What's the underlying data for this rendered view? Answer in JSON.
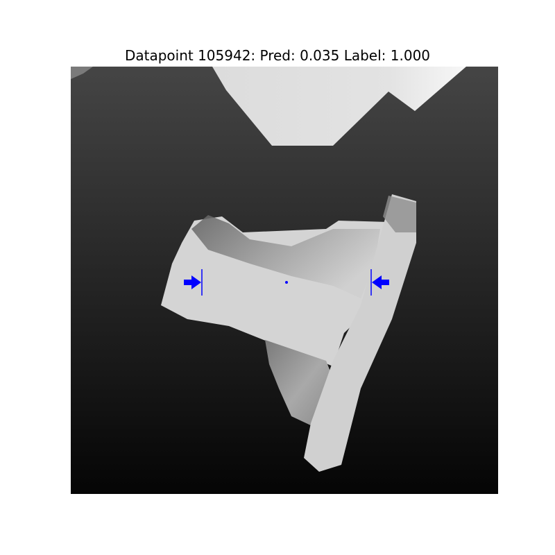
{
  "figure": {
    "title": "Datapoint 105942: Pred: 0.035 Label: 1.000"
  },
  "colors": {
    "background_gradient_top": "#454545",
    "background_gradient_bottom": "#050505",
    "object_light": "#d8d8d8",
    "object_mid": "#a9a9a9",
    "object_dark": "#6f6f6f",
    "top_shape": "#dedede",
    "marker": "#0000ff"
  }
}
